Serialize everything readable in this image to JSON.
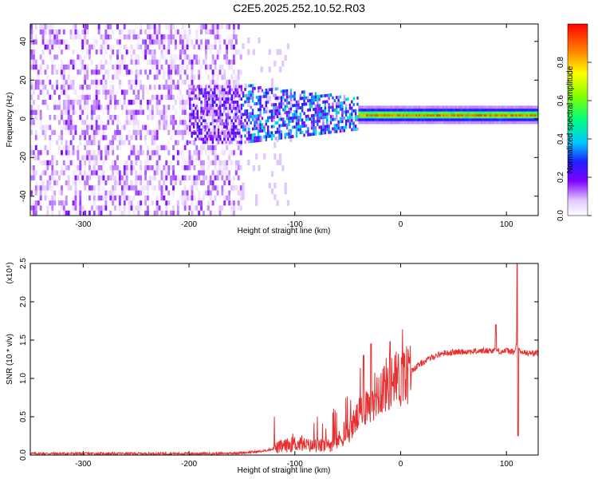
{
  "title": "C2E5.2025.252.10.52.R03",
  "colors": {
    "snr_line": "#e83030",
    "spectral_low": "#8000ff",
    "spectral_mid": "#00d0ff",
    "spectral_high": "#ff2000",
    "background": "#ffffff"
  },
  "chart_data": [
    {
      "type": "heatmap",
      "xlabel": "Height of straight line (km)",
      "ylabel": "Frequency (Hz)",
      "xlim": [
        -350,
        130
      ],
      "ylim": [
        -50,
        49
      ],
      "xticks": [
        -300,
        -200,
        -100,
        0,
        100
      ],
      "yticks": [
        -40,
        -20,
        0,
        20,
        40
      ],
      "colorbar": {
        "label": "Normalized spectral amplitude",
        "range": [
          0,
          1
        ],
        "ticks": [
          0.0,
          0.2,
          0.4,
          0.6,
          0.8
        ],
        "colormap": "white-purple-blue-cyan-green-yellow-red"
      },
      "regions": [
        {
          "x_range": [
            -350,
            -150
          ],
          "description": "broadband noise",
          "freq_range": [
            -50,
            49
          ],
          "amplitude": [
            0.0,
            0.2
          ]
        },
        {
          "x_range": [
            -150,
            -40
          ],
          "description": "band narrowing",
          "freq_range": [
            -15,
            15
          ],
          "amplitude": [
            0.1,
            0.45
          ]
        },
        {
          "x_range": [
            -40,
            130
          ],
          "description": "narrow line",
          "center_freq": 2,
          "amplitude": [
            0.7,
            1.0
          ]
        }
      ]
    },
    {
      "type": "line",
      "xlabel": "Height of straight line (km)",
      "ylabel": "SNR (10 * v/v)",
      "ylabel_scale": "(x10⁴)",
      "xlim": [
        -350,
        130
      ],
      "ylim": [
        0,
        2.5
      ],
      "xticks": [
        -300,
        -200,
        -100,
        0,
        100
      ],
      "yticks": [
        "0.0",
        "0.5",
        "1.0",
        "1.5",
        "2.0",
        "2.5"
      ],
      "series": [
        {
          "x": [
            -350,
            -300,
            -250,
            -200,
            -170,
            -150,
            -130,
            -115,
            -100,
            -85,
            -70,
            -60,
            -50,
            -40,
            -30,
            -20,
            -10,
            0,
            10,
            20,
            30,
            40,
            60,
            80,
            90,
            95,
            100,
            105,
            108,
            110,
            112,
            115,
            120,
            130
          ],
          "y": [
            0.02,
            0.02,
            0.02,
            0.02,
            0.02,
            0.03,
            0.05,
            0.1,
            0.15,
            0.12,
            0.12,
            0.18,
            0.3,
            0.5,
            0.7,
            0.85,
            0.95,
            1.0,
            1.1,
            1.2,
            1.28,
            1.33,
            1.35,
            1.36,
            1.37,
            1.35,
            1.36,
            1.35,
            1.34,
            1.5,
            1.35,
            1.34,
            1.33,
            1.33
          ],
          "spikes": [
            {
              "x": -35,
              "y": 1.3
            },
            {
              "x": -28,
              "y": 1.45
            },
            {
              "x": -10,
              "y": 1.48
            },
            {
              "x": 90,
              "y": 1.7
            },
            {
              "x": 110,
              "y": 2.5
            },
            {
              "x": 111,
              "y": 0.25
            }
          ]
        }
      ]
    }
  ]
}
